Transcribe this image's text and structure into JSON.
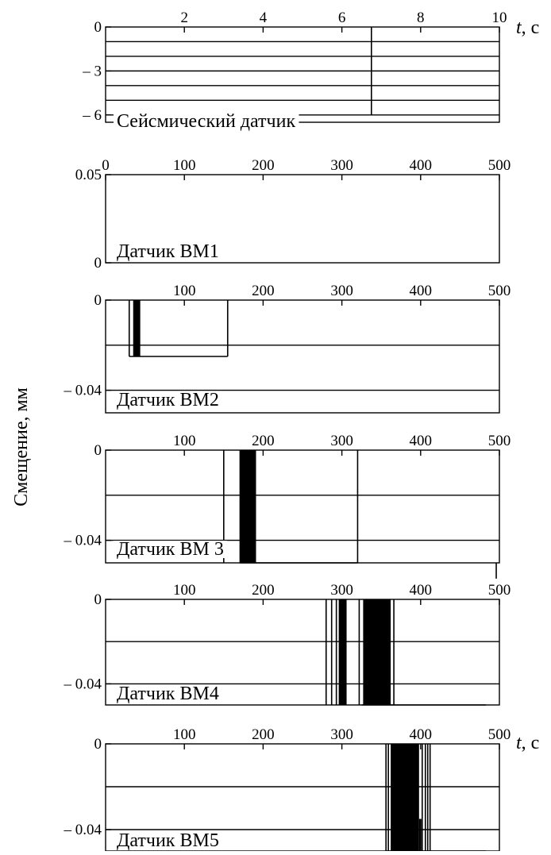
{
  "ylabel": "Смещение, мм",
  "xunit_label_top": "t, с",
  "xunit_label_bottom": "t, с",
  "chart_data": [
    {
      "type": "line",
      "name_label": "Сейсмический датчик",
      "xlim": [
        0,
        10
      ],
      "ylim": [
        -6.5,
        0
      ],
      "xticks": [
        2,
        4,
        6,
        8,
        10
      ],
      "xtick_labels": [
        "2",
        "4",
        "6",
        "8",
        "10"
      ],
      "yticks": [
        0,
        -3,
        -6
      ],
      "ytick_labels": [
        "0",
        "– 3",
        "– 6"
      ],
      "grid_y": [
        -1,
        -2,
        -3,
        -4,
        -5,
        -6
      ],
      "events": [
        {
          "t": 6.75,
          "from": 0,
          "to": -6
        }
      ]
    },
    {
      "type": "line",
      "name_label": "Датчик ВМ1",
      "xlim": [
        0,
        500
      ],
      "ylim": [
        0,
        0.05
      ],
      "xticks": [
        0,
        100,
        200,
        300,
        400,
        500
      ],
      "xtick_labels": [
        "0",
        "100",
        "200",
        "300",
        "400",
        "500"
      ],
      "yticks": [
        0.05,
        0
      ],
      "ytick_labels": [
        "0.05",
        "0"
      ],
      "grid_y": [],
      "events": []
    },
    {
      "type": "line",
      "name_label": "Датчик ВМ2",
      "xlim": [
        0,
        500
      ],
      "ylim": [
        -0.05,
        0
      ],
      "xticks": [
        100,
        200,
        300,
        400,
        500
      ],
      "xtick_labels": [
        "100",
        "200",
        "300",
        "400",
        "500"
      ],
      "yticks": [
        0,
        -0.04
      ],
      "ytick_labels": [
        "0",
        "– 0.04"
      ],
      "grid_y": [
        -0.02,
        -0.04
      ],
      "trace": [
        [
          30,
          -0.025
        ],
        [
          155,
          -0.025
        ]
      ],
      "events": [
        {
          "t": 30,
          "from": 0,
          "to": -0.025
        },
        {
          "t": 155,
          "from": 0,
          "to": -0.025
        }
      ],
      "bursts": [
        {
          "start": 35,
          "end": 44,
          "from": 0,
          "to": -0.025
        }
      ]
    },
    {
      "type": "line",
      "name_label": "Датчик ВМ 3",
      "xlim": [
        0,
        500
      ],
      "ylim": [
        -0.05,
        0
      ],
      "xticks": [
        100,
        200,
        300,
        400,
        500
      ],
      "xtick_labels": [
        "100",
        "200",
        "300",
        "400",
        "500"
      ],
      "yticks": [
        0,
        -0.04
      ],
      "ytick_labels": [
        "0",
        "– 0.04"
      ],
      "grid_y": [
        -0.02,
        -0.04
      ],
      "trace": [
        [
          170,
          -0.05
        ],
        [
          320,
          -0.05
        ]
      ],
      "events": [
        {
          "t": 150,
          "from": 0,
          "to": -0.05
        },
        {
          "t": 320,
          "from": 0,
          "to": -0.05
        },
        {
          "t": 496,
          "from": -0.05,
          "to": -0.057
        }
      ],
      "bursts": [
        {
          "start": 170,
          "end": 191,
          "from": 0,
          "to": -0.05
        }
      ]
    },
    {
      "type": "line",
      "name_label": "Датчик ВМ4",
      "xlim": [
        0,
        500
      ],
      "ylim": [
        -0.05,
        0
      ],
      "xticks": [
        100,
        200,
        300,
        400,
        500
      ],
      "xtick_labels": [
        "100",
        "200",
        "300",
        "400",
        "500"
      ],
      "yticks": [
        0,
        -0.04
      ],
      "ytick_labels": [
        "0",
        "– 0.04"
      ],
      "grid_y": [
        -0.02,
        -0.04
      ],
      "trace": [
        [
          325,
          -0.05
        ],
        [
          483,
          -0.05
        ]
      ],
      "events": [
        {
          "t": 280,
          "from": 0,
          "to": -0.05
        },
        {
          "t": 287,
          "from": 0,
          "to": -0.05
        },
        {
          "t": 293,
          "from": 0,
          "to": -0.05
        },
        {
          "t": 322,
          "from": 0,
          "to": -0.05
        },
        {
          "t": 366,
          "from": 0,
          "to": -0.05
        }
      ],
      "bursts": [
        {
          "start": 296,
          "end": 306,
          "from": 0,
          "to": -0.05
        },
        {
          "start": 327,
          "end": 362,
          "from": 0,
          "to": -0.05
        }
      ]
    },
    {
      "type": "line",
      "name_label": "Датчик ВМ5",
      "xlim": [
        0,
        500
      ],
      "ylim": [
        -0.05,
        0
      ],
      "xticks": [
        100,
        200,
        300,
        400,
        500
      ],
      "xtick_labels": [
        "100",
        "200",
        "300",
        "400",
        "500"
      ],
      "yticks": [
        0,
        -0.04
      ],
      "ytick_labels": [
        "0",
        "– 0.04"
      ],
      "grid_y": [
        -0.02,
        -0.04
      ],
      "trace": [
        [
          357,
          -0.05
        ],
        [
          483,
          -0.05
        ]
      ],
      "events": [
        {
          "t": 356,
          "from": 0,
          "to": -0.05
        },
        {
          "t": 359,
          "from": 0,
          "to": -0.05
        },
        {
          "t": 402,
          "from": 0,
          "to": -0.05
        },
        {
          "t": 406,
          "from": 0,
          "to": -0.05
        },
        {
          "t": 409,
          "from": 0,
          "to": -0.05
        },
        {
          "t": 412,
          "from": 0,
          "to": -0.05
        }
      ],
      "bursts": [
        {
          "start": 362,
          "end": 398,
          "from": 0,
          "to": -0.05
        },
        {
          "start": 398,
          "end": 401,
          "from": -0.035,
          "to": -0.05
        }
      ]
    }
  ]
}
